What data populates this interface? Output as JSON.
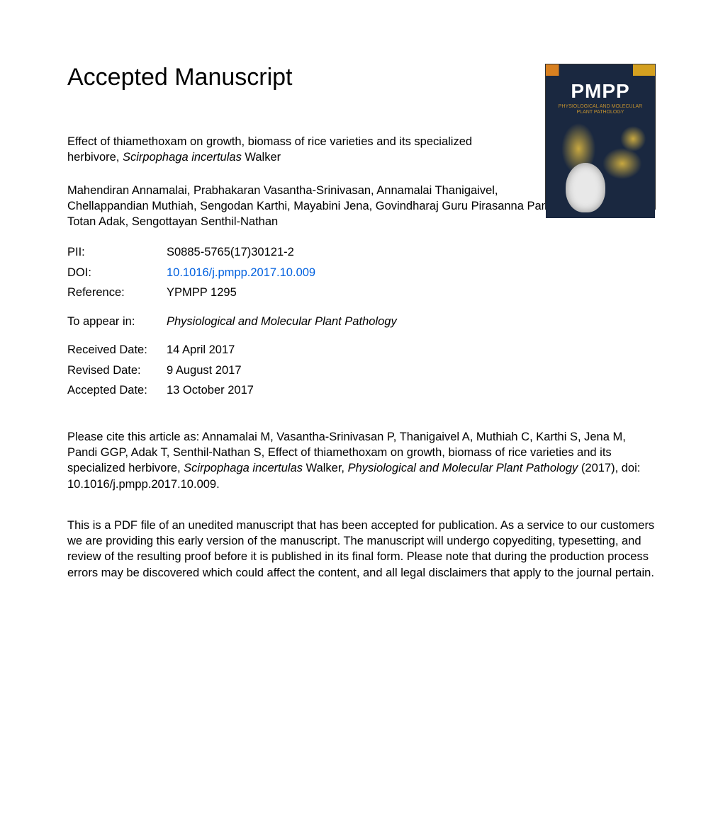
{
  "header": "Accepted Manuscript",
  "journal_cover": {
    "acronym": "PMPP",
    "subtitle_line1": "PHYSIOLOGICAL AND MOLECULAR",
    "subtitle_line2": "PLANT PATHOLOGY",
    "bg_color": "#1a2840",
    "accent_color": "#c8a840"
  },
  "title": {
    "prefix": "Effect of thiamethoxam on growth, biomass of rice varieties and its specialized herbivore, ",
    "species": "Scirpophaga incertulas",
    "suffix": " Walker"
  },
  "authors": "Mahendiran Annamalai, Prabhakaran Vasantha-Srinivasan, Annamalai Thanigaivel, Chellappandian Muthiah, Sengodan Karthi, Mayabini Jena, Govindharaj Guru Pirasanna Pandi, Totan Adak, Sengottayan Senthil-Nathan",
  "meta": {
    "pii_label": "PII:",
    "pii_value": "S0885-5765(17)30121-2",
    "doi_label": "DOI:",
    "doi_value": "10.1016/j.pmpp.2017.10.009",
    "ref_label": "Reference:",
    "ref_value": "YPMPP 1295",
    "appear_label": "To appear in:",
    "appear_value": "Physiological and Molecular Plant Pathology",
    "received_label": "Received Date:",
    "received_value": "14 April 2017",
    "revised_label": "Revised Date:",
    "revised_value": "9 August 2017",
    "accepted_label": "Accepted Date:",
    "accepted_value": "13 October 2017"
  },
  "citation": {
    "p1": "Please cite this article as: Annamalai M, Vasantha-Srinivasan P, Thanigaivel A, Muthiah C, Karthi S, Jena M, Pandi GGP, Adak T, Senthil-Nathan S, Effect of thiamethoxam on growth, biomass of rice varieties and its specialized herbivore, ",
    "species": "Scirpophaga incertulas",
    "p2": " Walker, ",
    "journal": "Physiological and Molecular Plant Pathology",
    "p3": " (2017), doi: 10.1016/j.pmpp.2017.10.009."
  },
  "disclaimer": "This is a PDF file of an unedited manuscript that has been accepted for publication. As a service to our customers we are providing this early version of the manuscript. The manuscript will undergo copyediting, typesetting, and review of the resulting proof before it is published in its final form. Please note that during the production process errors may be discovered which could affect the content, and all legal disclaimers that apply to the journal pertain."
}
